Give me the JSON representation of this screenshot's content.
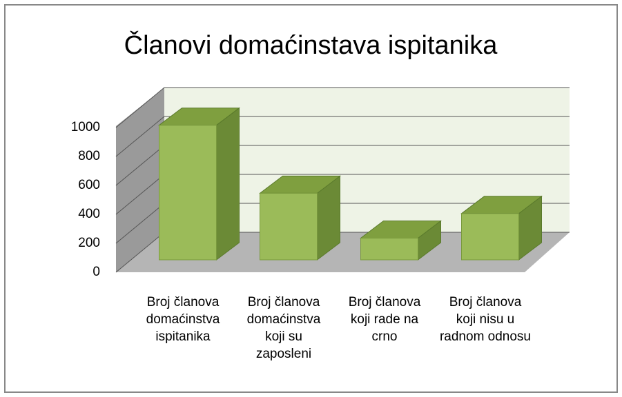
{
  "chart_data": {
    "type": "bar3d",
    "title": "Članovi domaćinstava ispitanika",
    "categories": [
      "Broj članova domaćinstva ispitanika",
      "Broj članova domaćinstva koji su zaposleni",
      "Broj članova koji rade na crno",
      "Broj članova koji nisu u radnom odnosu"
    ],
    "values": [
      930,
      460,
      150,
      320
    ],
    "color": "#9bbb59",
    "ylim": [
      0,
      1000
    ],
    "yticks": [
      0,
      200,
      400,
      600,
      800,
      1000
    ],
    "grid": true
  }
}
